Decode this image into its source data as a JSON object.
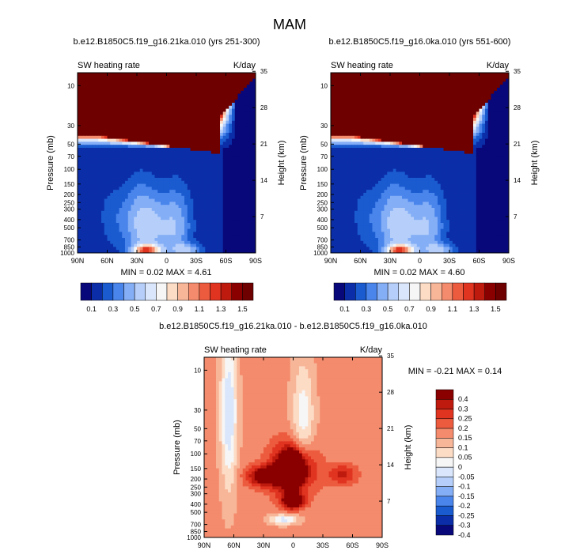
{
  "page": {
    "title": "MAM"
  },
  "palette": {
    "lev11": [
      "#08087a",
      "#0b2ea8",
      "#1a5bd0",
      "#4a85ec",
      "#84aef6",
      "#b6cffa",
      "#d9e6fb",
      "#f6f6f6",
      "#fddcc6",
      "#f8b699",
      "#f48b6c",
      "#ed5b3f",
      "#e03420",
      "#bf1a0e",
      "#8a0000",
      "#6e0000"
    ],
    "diff": [
      "#08087a",
      "#0b2ea8",
      "#1a5bd0",
      "#4a85ec",
      "#84aef6",
      "#b6cffa",
      "#d9e6fb",
      "#f6f6f6",
      "#fddcc6",
      "#f8b699",
      "#f48b6c",
      "#ed5b3f",
      "#e03420",
      "#bf1a0e",
      "#8a0000"
    ]
  },
  "chart_data": [
    {
      "type": "heatmap",
      "id": "panel1",
      "title": "b.e12.B1850C5.f19_g16.21ka.010 (yrs 251-300)",
      "left_label": "SW heating rate",
      "right_label": "K/day",
      "ylabel": "Pressure (mb)",
      "ylabel_right": "Height (km)",
      "xticks": [
        "90N",
        "60N",
        "30N",
        "0",
        "30S",
        "60S",
        "90S"
      ],
      "yticks": [
        "10",
        "30",
        "50",
        "70",
        "100",
        "150",
        "200",
        "250",
        "300",
        "400",
        "500",
        "700",
        "850",
        "1000"
      ],
      "yticks_right": [
        "35",
        "28",
        "21",
        "14",
        "7"
      ],
      "stats": "MIN =   0.02   MAX =   4.61",
      "colorbar": {
        "labels": [
          "0.1",
          "0.3",
          "0.5",
          "0.7",
          "0.9",
          "1.1",
          "1.3",
          "1.5"
        ],
        "levels": 16
      }
    },
    {
      "type": "heatmap",
      "id": "panel2",
      "title": "b.e12.B1850C5.f19_g16.0ka.010 (yrs 551-600)",
      "left_label": "SW heating rate",
      "right_label": "K/day",
      "ylabel": "Pressure (mb)",
      "ylabel_right": "Height (km)",
      "xticks": [
        "90N",
        "60N",
        "30N",
        "0",
        "30S",
        "60S",
        "90S"
      ],
      "yticks": [
        "10",
        "30",
        "50",
        "70",
        "100",
        "150",
        "200",
        "250",
        "300",
        "400",
        "500",
        "700",
        "850",
        "1000"
      ],
      "yticks_right": [
        "35",
        "28",
        "21",
        "14",
        "7"
      ],
      "stats": "MIN =   0.02   MAX =   4.60",
      "colorbar": {
        "labels": [
          "0.1",
          "0.3",
          "0.5",
          "0.7",
          "0.9",
          "1.1",
          "1.3",
          "1.5"
        ],
        "levels": 16
      }
    },
    {
      "type": "heatmap",
      "id": "panel3",
      "title": "b.e12.B1850C5.f19_g16.21ka.010 - b.e12.B1850C5.f19_g16.0ka.010",
      "left_label": "SW heating rate",
      "right_label": "K/day",
      "ylabel": "Pressure (mb)",
      "ylabel_right": "Height (km)",
      "xticks": [
        "90N",
        "60N",
        "30N",
        "0",
        "30S",
        "60S",
        "90S"
      ],
      "yticks": [
        "10",
        "30",
        "50",
        "70",
        "100",
        "150",
        "200",
        "250",
        "300",
        "400",
        "500",
        "700",
        "850",
        "1000"
      ],
      "yticks_right": [
        "35",
        "28",
        "21",
        "14",
        "7"
      ],
      "stats": "MIN =  -0.21   MAX =    0.14",
      "colorbar": {
        "labels": [
          "0.4",
          "0.3",
          "0.25",
          "0.2",
          "0.15",
          "0.1",
          "0.05",
          "0",
          "-0.05",
          "-0.1",
          "-0.15",
          "-0.2",
          "-0.25",
          "-0.3",
          "-0.4"
        ]
      }
    }
  ]
}
